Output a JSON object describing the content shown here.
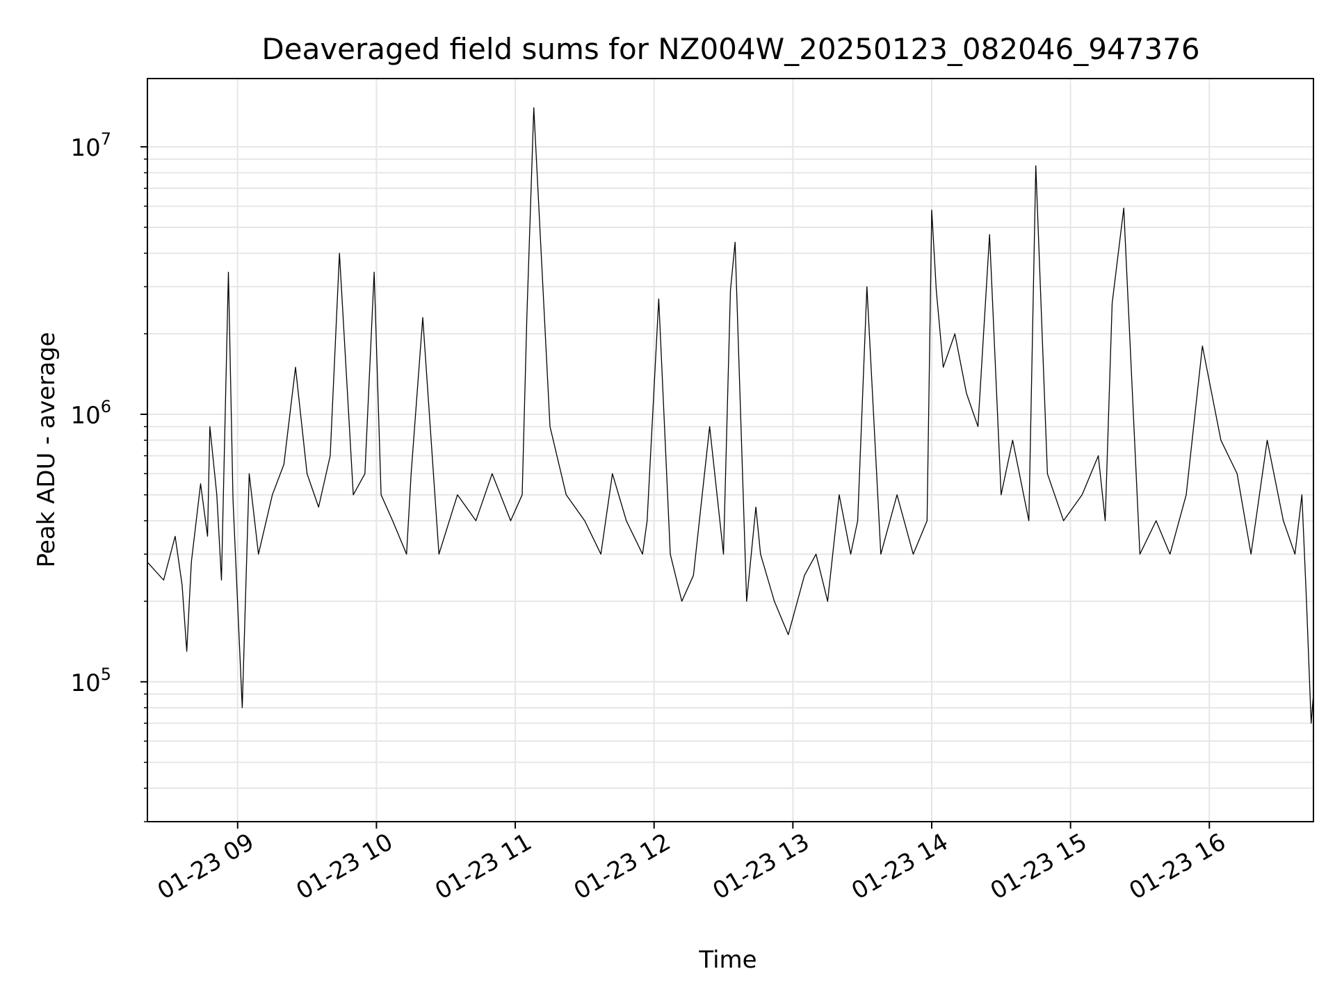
{
  "chart_data": {
    "type": "line",
    "title": "Deaveraged field sums for NZ004W_20250123_082046_947376",
    "xlabel": "Time",
    "ylabel": "Peak ADU - average",
    "yscale": "log",
    "xlim": [
      "2025-01-23 08:21",
      "2025-01-23 16:45"
    ],
    "ylim": [
      30000,
      18000000
    ],
    "grid": true,
    "line_color": "#000000",
    "x_ticks": [
      {
        "value": "2025-01-23 09:00",
        "label": "01-23 09"
      },
      {
        "value": "2025-01-23 10:00",
        "label": "01-23 10"
      },
      {
        "value": "2025-01-23 11:00",
        "label": "01-23 11"
      },
      {
        "value": "2025-01-23 12:00",
        "label": "01-23 12"
      },
      {
        "value": "2025-01-23 13:00",
        "label": "01-23 13"
      },
      {
        "value": "2025-01-23 14:00",
        "label": "01-23 14"
      },
      {
        "value": "2025-01-23 15:00",
        "label": "01-23 15"
      },
      {
        "value": "2025-01-23 16:00",
        "label": "01-23 16"
      }
    ],
    "y_ticks": [
      {
        "value": 100000,
        "base": "10",
        "exp": "5"
      },
      {
        "value": 1000000,
        "base": "10",
        "exp": "6"
      },
      {
        "value": 10000000,
        "base": "10",
        "exp": "7"
      }
    ],
    "x": [
      "2025-01-23 08:21",
      "2025-01-23 08:28",
      "2025-01-23 08:33",
      "2025-01-23 08:36",
      "2025-01-23 08:38",
      "2025-01-23 08:40",
      "2025-01-23 08:44",
      "2025-01-23 08:47",
      "2025-01-23 08:48",
      "2025-01-23 08:51",
      "2025-01-23 08:53",
      "2025-01-23 08:56",
      "2025-01-23 08:58",
      "2025-01-23 09:02",
      "2025-01-23 09:05",
      "2025-01-23 09:09",
      "2025-01-23 09:15",
      "2025-01-23 09:20",
      "2025-01-23 09:25",
      "2025-01-23 09:30",
      "2025-01-23 09:35",
      "2025-01-23 09:40",
      "2025-01-23 09:44",
      "2025-01-23 09:50",
      "2025-01-23 09:55",
      "2025-01-23 09:59",
      "2025-01-23 10:02",
      "2025-01-23 10:07",
      "2025-01-23 10:13",
      "2025-01-23 10:15",
      "2025-01-23 10:20",
      "2025-01-23 10:27",
      "2025-01-23 10:35",
      "2025-01-23 10:43",
      "2025-01-23 10:50",
      "2025-01-23 10:58",
      "2025-01-23 11:03",
      "2025-01-23 11:05",
      "2025-01-23 11:08",
      "2025-01-23 11:15",
      "2025-01-23 11:22",
      "2025-01-23 11:30",
      "2025-01-23 11:37",
      "2025-01-23 11:42",
      "2025-01-23 11:48",
      "2025-01-23 11:55",
      "2025-01-23 11:57",
      "2025-01-23 12:02",
      "2025-01-23 12:07",
      "2025-01-23 12:12",
      "2025-01-23 12:17",
      "2025-01-23 12:24",
      "2025-01-23 12:30",
      "2025-01-23 12:33",
      "2025-01-23 12:35",
      "2025-01-23 12:40",
      "2025-01-23 12:44",
      "2025-01-23 12:46",
      "2025-01-23 12:52",
      "2025-01-23 12:58",
      "2025-01-23 13:05",
      "2025-01-23 13:10",
      "2025-01-23 13:15",
      "2025-01-23 13:20",
      "2025-01-23 13:25",
      "2025-01-23 13:28",
      "2025-01-23 13:32",
      "2025-01-23 13:38",
      "2025-01-23 13:45",
      "2025-01-23 13:52",
      "2025-01-23 13:58",
      "2025-01-23 14:00",
      "2025-01-23 14:02",
      "2025-01-23 14:05",
      "2025-01-23 14:10",
      "2025-01-23 14:15",
      "2025-01-23 14:20",
      "2025-01-23 14:25",
      "2025-01-23 14:30",
      "2025-01-23 14:35",
      "2025-01-23 14:42",
      "2025-01-23 14:45",
      "2025-01-23 14:50",
      "2025-01-23 14:57",
      "2025-01-23 15:05",
      "2025-01-23 15:12",
      "2025-01-23 15:15",
      "2025-01-23 15:18",
      "2025-01-23 15:23",
      "2025-01-23 15:30",
      "2025-01-23 15:37",
      "2025-01-23 15:43",
      "2025-01-23 15:50",
      "2025-01-23 15:57",
      "2025-01-23 16:05",
      "2025-01-23 16:12",
      "2025-01-23 16:18",
      "2025-01-23 16:25",
      "2025-01-23 16:32",
      "2025-01-23 16:37",
      "2025-01-23 16:40",
      "2025-01-23 16:42",
      "2025-01-23 16:44",
      "2025-01-23 16:45"
    ],
    "y": [
      280000,
      240000,
      350000,
      230000,
      130000,
      280000,
      550000,
      350000,
      900000,
      500000,
      240000,
      3400000,
      480000,
      80000,
      600000,
      300000,
      500000,
      650000,
      1500000,
      600000,
      450000,
      700000,
      4000000,
      500000,
      600000,
      3400000,
      500000,
      400000,
      300000,
      600000,
      2300000,
      300000,
      500000,
      400000,
      600000,
      400000,
      500000,
      2300000,
      14000000,
      900000,
      500000,
      400000,
      300000,
      600000,
      400000,
      300000,
      400000,
      2700000,
      300000,
      200000,
      250000,
      900000,
      300000,
      2900000,
      4400000,
      200000,
      450000,
      300000,
      200000,
      150000,
      250000,
      300000,
      200000,
      500000,
      300000,
      400000,
      3000000,
      300000,
      500000,
      300000,
      400000,
      5800000,
      2900000,
      1500000,
      2000000,
      1200000,
      900000,
      4700000,
      500000,
      800000,
      400000,
      8500000,
      600000,
      400000,
      500000,
      700000,
      400000,
      2600000,
      5900000,
      300000,
      400000,
      300000,
      500000,
      1800000,
      800000,
      600000,
      300000,
      800000,
      400000,
      300000,
      500000,
      200000,
      70000,
      90000
    ]
  }
}
